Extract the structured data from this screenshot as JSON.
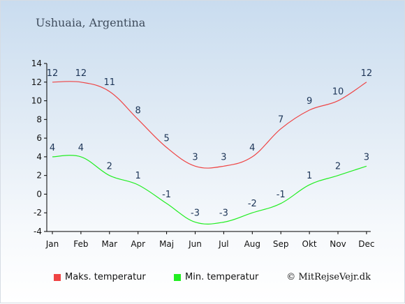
{
  "location_title": "Ushuaia, Argentina",
  "copyright": "© MitRejseVejr.dk",
  "chart_data": {
    "type": "line",
    "categories": [
      "Jan",
      "Feb",
      "Mar",
      "Apr",
      "Maj",
      "Jun",
      "Jul",
      "Aug",
      "Sep",
      "Okt",
      "Nov",
      "Dec"
    ],
    "ylim": [
      -4,
      14
    ],
    "yticks": [
      -4,
      -2,
      0,
      2,
      4,
      6,
      8,
      10,
      12,
      14
    ],
    "grid": false,
    "legend_position": "bottom",
    "series": [
      {
        "name": "Maks. temperatur",
        "color": "#ef4444",
        "values": [
          12,
          12,
          11,
          8,
          5,
          3,
          3,
          4,
          7,
          9,
          10,
          12
        ]
      },
      {
        "name": "Min. temperatur",
        "color": "#22ee22",
        "values": [
          4,
          4,
          2,
          1,
          -1,
          -3,
          -3,
          -2,
          -1,
          1,
          2,
          3
        ]
      }
    ]
  }
}
